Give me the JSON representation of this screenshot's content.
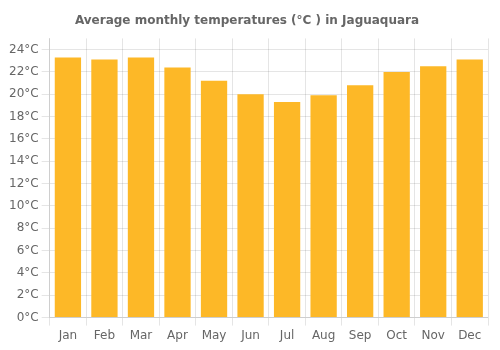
{
  "chart_data": {
    "type": "bar",
    "title": "Average monthly temperatures (°C ) in Jaguaquara",
    "categories": [
      "Jan",
      "Feb",
      "Mar",
      "Apr",
      "May",
      "Jun",
      "Jul",
      "Aug",
      "Sep",
      "Oct",
      "Nov",
      "Dec"
    ],
    "values": [
      23.3,
      23.1,
      23.3,
      22.4,
      21.2,
      20.0,
      19.3,
      19.9,
      20.8,
      22.0,
      22.5,
      23.1
    ],
    "color": "#FDB827",
    "ylim": [
      0,
      25
    ],
    "yticks": [
      {
        "value": 0,
        "label": "0°C"
      },
      {
        "value": 2,
        "label": "2°C"
      },
      {
        "value": 4,
        "label": "4°C"
      },
      {
        "value": 6,
        "label": "6°C"
      },
      {
        "value": 8,
        "label": "8°C"
      },
      {
        "value": 10,
        "label": "10°C"
      },
      {
        "value": 12,
        "label": "12°C"
      },
      {
        "value": 14,
        "label": "14°C"
      },
      {
        "value": 16,
        "label": "16°C"
      },
      {
        "value": 18,
        "label": "18°C"
      },
      {
        "value": 20,
        "label": "20°C"
      },
      {
        "value": 22,
        "label": "22°C"
      },
      {
        "value": 24,
        "label": "24°C"
      }
    ],
    "grid": true
  }
}
